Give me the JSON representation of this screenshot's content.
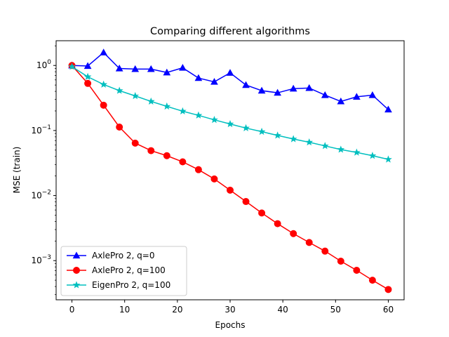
{
  "chart_data": {
    "type": "line",
    "title": "Comparing different algorithms",
    "xlabel": "Epochs",
    "ylabel": "MSE (train)",
    "xlim": [
      -3,
      63
    ],
    "ylim": [
      0.00025,
      2.4
    ],
    "yscale": "log",
    "x_ticks": [
      0,
      10,
      20,
      30,
      40,
      50,
      60
    ],
    "x_tick_labels": [
      "0",
      "10",
      "20",
      "30",
      "40",
      "50",
      "60"
    ],
    "y_ticks": [
      0.001,
      0.01,
      0.1,
      1
    ],
    "y_tick_labels": [
      {
        "base": "10",
        "exp": "−3"
      },
      {
        "base": "10",
        "exp": "−2"
      },
      {
        "base": "10",
        "exp": "−1"
      },
      {
        "base": "10",
        "exp": "0"
      }
    ],
    "grid": false,
    "legend_position": "lower-left",
    "series": [
      {
        "name": "AxlePro 2, q=0",
        "color": "#0000ff",
        "marker": "triangle",
        "x": [
          0,
          3,
          6,
          9,
          12,
          15,
          18,
          21,
          24,
          27,
          30,
          33,
          36,
          39,
          42,
          45,
          48,
          51,
          54,
          57,
          60
        ],
        "y": [
          1.0,
          0.98,
          1.58,
          0.9,
          0.88,
          0.88,
          0.78,
          0.92,
          0.64,
          0.56,
          0.77,
          0.5,
          0.41,
          0.38,
          0.44,
          0.45,
          0.35,
          0.28,
          0.33,
          0.35,
          0.21
        ]
      },
      {
        "name": "AxlePro 2, q=100",
        "color": "#ff0000",
        "marker": "circle",
        "x": [
          0,
          3,
          6,
          9,
          12,
          15,
          18,
          21,
          24,
          27,
          30,
          33,
          36,
          39,
          42,
          45,
          48,
          51,
          54,
          57,
          60
        ],
        "y": [
          1.0,
          0.53,
          0.245,
          0.113,
          0.064,
          0.049,
          0.041,
          0.033,
          0.025,
          0.018,
          0.0121,
          0.0081,
          0.0054,
          0.0037,
          0.0026,
          0.0019,
          0.0014,
          0.00098,
          0.00071,
          0.0005,
          0.00036
        ]
      },
      {
        "name": "EigenPro 2, q=100",
        "color": "#00bfbf",
        "marker": "star",
        "x": [
          0,
          3,
          6,
          9,
          12,
          15,
          18,
          21,
          24,
          27,
          30,
          33,
          36,
          39,
          42,
          45,
          48,
          51,
          54,
          57,
          60
        ],
        "y": [
          0.96,
          0.67,
          0.51,
          0.41,
          0.34,
          0.28,
          0.235,
          0.198,
          0.171,
          0.146,
          0.126,
          0.109,
          0.096,
          0.084,
          0.074,
          0.066,
          0.058,
          0.051,
          0.046,
          0.041,
          0.036
        ]
      }
    ]
  }
}
